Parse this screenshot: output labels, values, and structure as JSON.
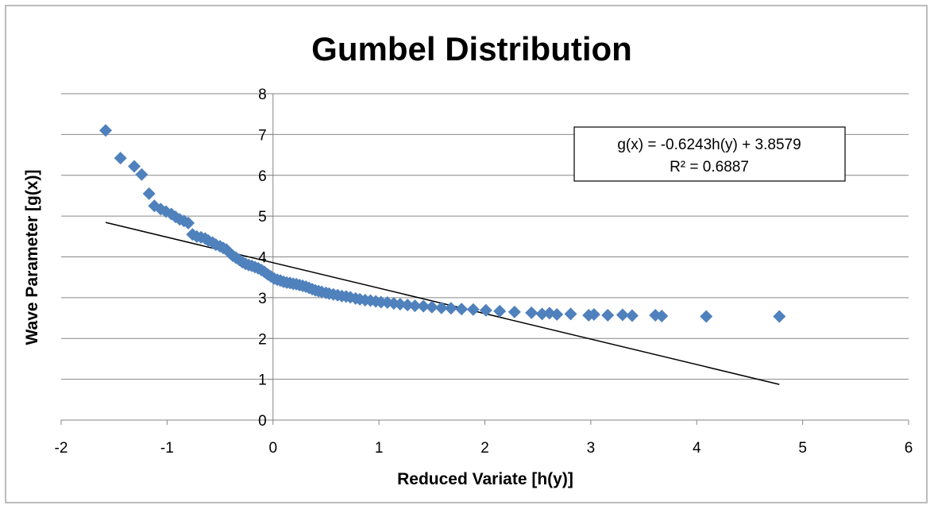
{
  "chart_data": {
    "type": "scatter",
    "title": "Gumbel Distribution",
    "xlabel": "Reduced Variate [h(y)]",
    "ylabel": "Wave Parameter [g(x)]",
    "xlim": [
      -2,
      6
    ],
    "ylim": [
      0,
      8
    ],
    "xticks": [
      "-2",
      "-1",
      "0",
      "1",
      "2",
      "3",
      "4",
      "5",
      "6"
    ],
    "yticks": [
      "0",
      "1",
      "2",
      "3",
      "4",
      "5",
      "6",
      "7",
      "8"
    ],
    "grid": "horizontal",
    "marker_color": "#4f81bd",
    "trendline_color": "#000000",
    "trendline": {
      "equation": "g(x) = -0.6243h(y) + 3.8579",
      "r_squared": "R² = 0.6887",
      "slope": -0.6243,
      "intercept": 3.8579,
      "x_range": [
        -1.58,
        4.78
      ]
    },
    "points": [
      [
        -1.58,
        7.1
      ],
      [
        -1.44,
        6.42
      ],
      [
        -1.31,
        6.22
      ],
      [
        -1.24,
        6.02
      ],
      [
        -1.17,
        5.55
      ],
      [
        -1.12,
        5.25
      ],
      [
        -1.06,
        5.17
      ],
      [
        -1.01,
        5.11
      ],
      [
        -0.96,
        5.05
      ],
      [
        -0.92,
        4.98
      ],
      [
        -0.88,
        4.92
      ],
      [
        -0.84,
        4.88
      ],
      [
        -0.8,
        4.83
      ],
      [
        -0.76,
        4.55
      ],
      [
        -0.72,
        4.5
      ],
      [
        -0.68,
        4.48
      ],
      [
        -0.64,
        4.45
      ],
      [
        -0.61,
        4.4
      ],
      [
        -0.57,
        4.35
      ],
      [
        -0.54,
        4.3
      ],
      [
        -0.5,
        4.26
      ],
      [
        -0.47,
        4.22
      ],
      [
        -0.44,
        4.18
      ],
      [
        -0.41,
        4.1
      ],
      [
        -0.38,
        4.03
      ],
      [
        -0.35,
        3.98
      ],
      [
        -0.32,
        3.93
      ],
      [
        -0.29,
        3.87
      ],
      [
        -0.26,
        3.83
      ],
      [
        -0.23,
        3.8
      ],
      [
        -0.2,
        3.78
      ],
      [
        -0.17,
        3.75
      ],
      [
        -0.14,
        3.72
      ],
      [
        -0.11,
        3.68
      ],
      [
        -0.08,
        3.63
      ],
      [
        -0.05,
        3.57
      ],
      [
        -0.02,
        3.52
      ],
      [
        0.01,
        3.47
      ],
      [
        0.04,
        3.44
      ],
      [
        0.07,
        3.42
      ],
      [
        0.1,
        3.39
      ],
      [
        0.13,
        3.37
      ],
      [
        0.16,
        3.36
      ],
      [
        0.19,
        3.34
      ],
      [
        0.22,
        3.33
      ],
      [
        0.25,
        3.31
      ],
      [
        0.28,
        3.29
      ],
      [
        0.31,
        3.27
      ],
      [
        0.34,
        3.24
      ],
      [
        0.37,
        3.21
      ],
      [
        0.4,
        3.18
      ],
      [
        0.43,
        3.16
      ],
      [
        0.46,
        3.14
      ],
      [
        0.5,
        3.12
      ],
      [
        0.53,
        3.1
      ],
      [
        0.57,
        3.08
      ],
      [
        0.61,
        3.06
      ],
      [
        0.65,
        3.04
      ],
      [
        0.69,
        3.03
      ],
      [
        0.73,
        3.01
      ],
      [
        0.78,
        2.98
      ],
      [
        0.82,
        2.96
      ],
      [
        0.87,
        2.94
      ],
      [
        0.92,
        2.93
      ],
      [
        0.97,
        2.91
      ],
      [
        1.02,
        2.89
      ],
      [
        1.08,
        2.88
      ],
      [
        1.14,
        2.86
      ],
      [
        1.2,
        2.84
      ],
      [
        1.27,
        2.82
      ],
      [
        1.34,
        2.8
      ],
      [
        1.42,
        2.79
      ],
      [
        1.5,
        2.77
      ],
      [
        1.59,
        2.75
      ],
      [
        1.68,
        2.74
      ],
      [
        1.78,
        2.72
      ],
      [
        1.89,
        2.71
      ],
      [
        2.01,
        2.69
      ],
      [
        2.14,
        2.67
      ],
      [
        2.28,
        2.65
      ],
      [
        2.44,
        2.63
      ],
      [
        2.61,
        2.62
      ],
      [
        2.81,
        2.6
      ],
      [
        3.03,
        2.59
      ],
      [
        3.3,
        2.58
      ],
      [
        3.61,
        2.57
      ],
      [
        3.39,
        2.56
      ],
      [
        3.67,
        2.55
      ],
      [
        4.09,
        2.54
      ],
      [
        4.78,
        2.54
      ],
      [
        2.54,
        2.6
      ],
      [
        2.68,
        2.59
      ],
      [
        2.98,
        2.57
      ],
      [
        3.16,
        2.57
      ]
    ]
  }
}
